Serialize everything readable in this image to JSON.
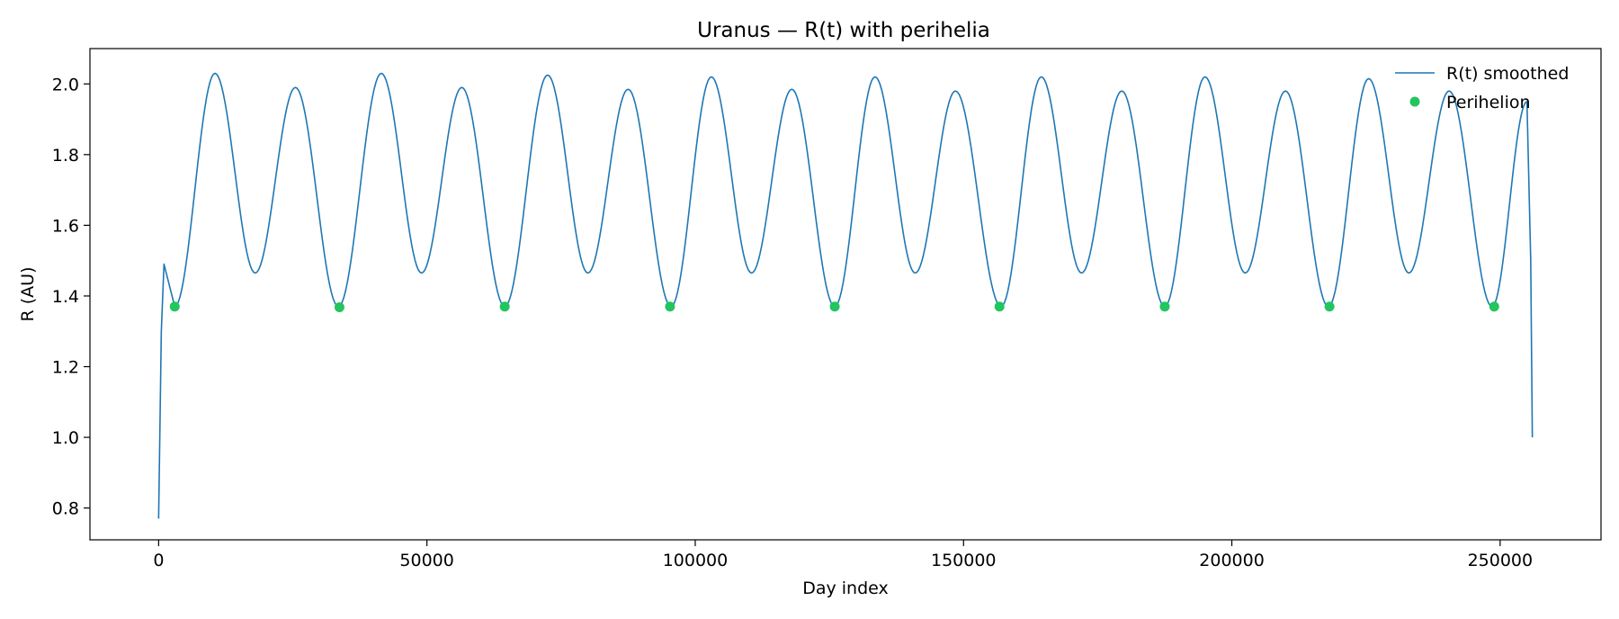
{
  "chart_data": {
    "type": "line",
    "title": "Uranus — R(t) with perihelia",
    "xlabel": "Day index",
    "ylabel": "R (AU)",
    "xlim": [
      -12800,
      268800
    ],
    "ylim": [
      0.71,
      2.1
    ],
    "xticks": [
      0,
      50000,
      100000,
      150000,
      200000,
      250000
    ],
    "xtick_labels": [
      "0",
      "50000",
      "100000",
      "150000",
      "200000",
      "250000"
    ],
    "yticks": [
      0.8,
      1.0,
      1.2,
      1.4,
      1.6,
      1.8,
      2.0
    ],
    "ytick_labels": [
      "0.8",
      "1.0",
      "1.2",
      "1.4",
      "1.6",
      "1.8",
      "2.0"
    ],
    "grid": false,
    "legend_position": "top-right",
    "series": [
      {
        "name": "R(t) smoothed",
        "kind": "line",
        "color": "#1f77b4",
        "x": [
          0,
          500,
          1000,
          3000,
          10500,
          18000,
          25500,
          33500,
          41500,
          49000,
          56500,
          64500,
          72500,
          80000,
          87500,
          95500,
          103000,
          110500,
          118000,
          126000,
          133500,
          141000,
          148500,
          157000,
          164500,
          172000,
          179500,
          187500,
          195000,
          202500,
          210000,
          218000,
          225500,
          233000,
          240500,
          248500,
          255000,
          255700,
          256000
        ],
        "y": [
          0.77,
          1.3,
          1.49,
          1.37,
          2.03,
          1.465,
          1.99,
          1.37,
          2.03,
          1.465,
          1.99,
          1.37,
          2.025,
          1.465,
          1.985,
          1.37,
          2.02,
          1.465,
          1.985,
          1.37,
          2.02,
          1.465,
          1.98,
          1.37,
          2.02,
          1.465,
          1.98,
          1.37,
          2.02,
          1.465,
          1.98,
          1.37,
          2.015,
          1.465,
          1.98,
          1.37,
          1.95,
          1.5,
          1.0
        ]
      },
      {
        "name": "Perihelion",
        "kind": "scatter",
        "color": "#22c55e",
        "x": [
          3000,
          33700,
          64500,
          95300,
          126000,
          156700,
          187500,
          218200,
          248900
        ],
        "y": [
          1.37,
          1.368,
          1.37,
          1.37,
          1.37,
          1.37,
          1.37,
          1.37,
          1.37
        ]
      }
    ]
  }
}
